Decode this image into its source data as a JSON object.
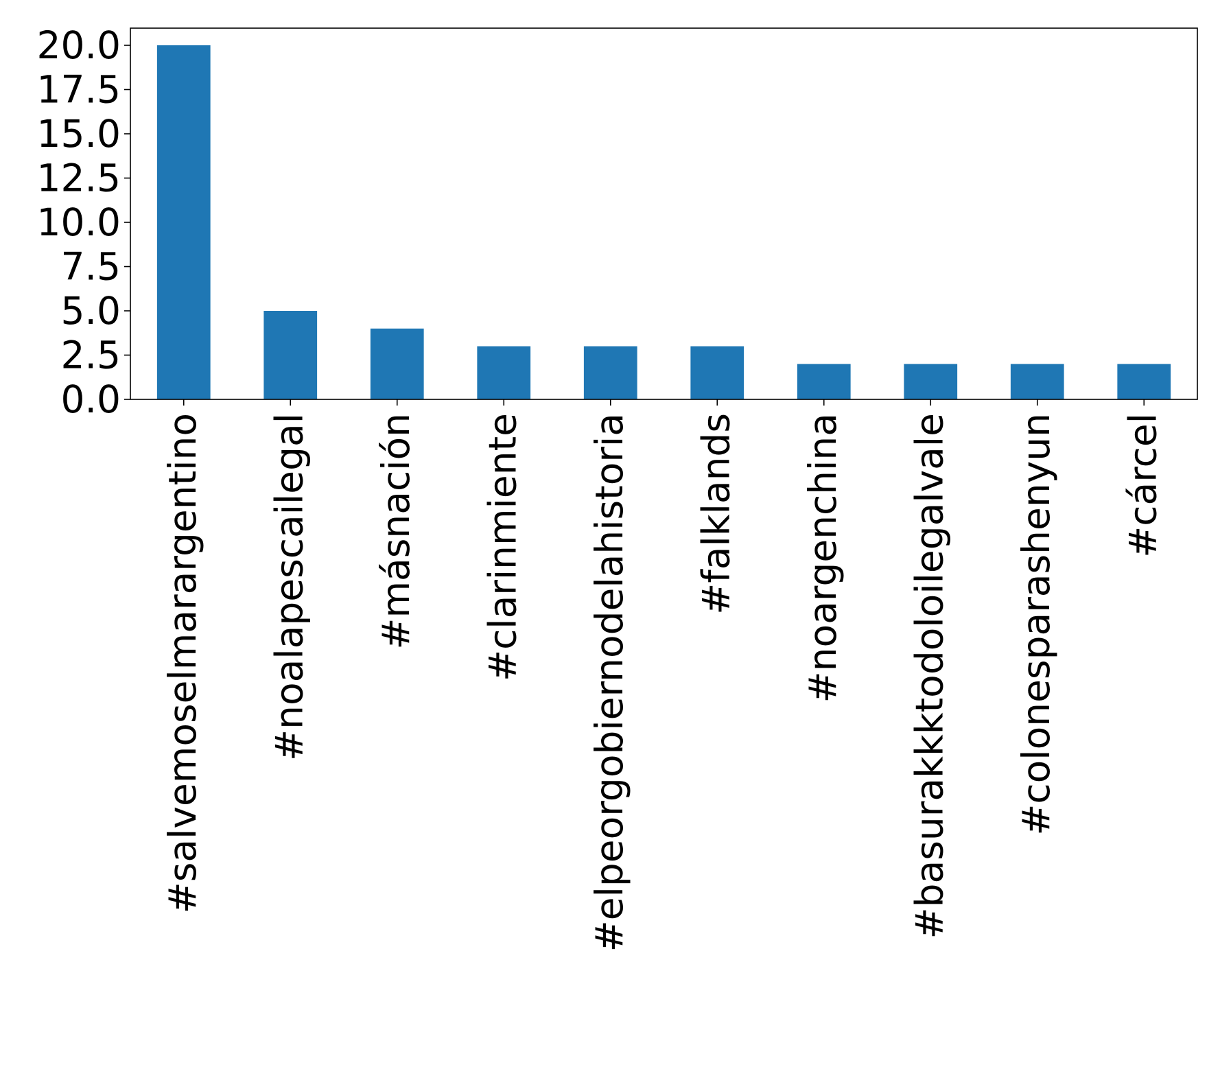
{
  "chart_data": {
    "type": "bar",
    "title": "",
    "xlabel": "",
    "ylabel": "",
    "categories": [
      "#salvemoselmarargentino",
      "#noalapescailegal",
      "#másnación",
      "#clarinmiente",
      "#elpeorgobiernodelahistoria",
      "#falklands",
      "#noargenchina",
      "#basurakkktodoloilegalvale",
      "#colonesparashenyun",
      "#cárcel"
    ],
    "values": [
      20,
      5,
      4,
      3,
      3,
      3,
      2,
      2,
      2,
      2
    ],
    "ylim": [
      0,
      21
    ],
    "yticks": [
      "0.0",
      "2.5",
      "5.0",
      "7.5",
      "10.0",
      "12.5",
      "15.0",
      "17.5",
      "20.0"
    ],
    "bar_color": "#1f77b4",
    "grid": false,
    "legend": "none"
  }
}
